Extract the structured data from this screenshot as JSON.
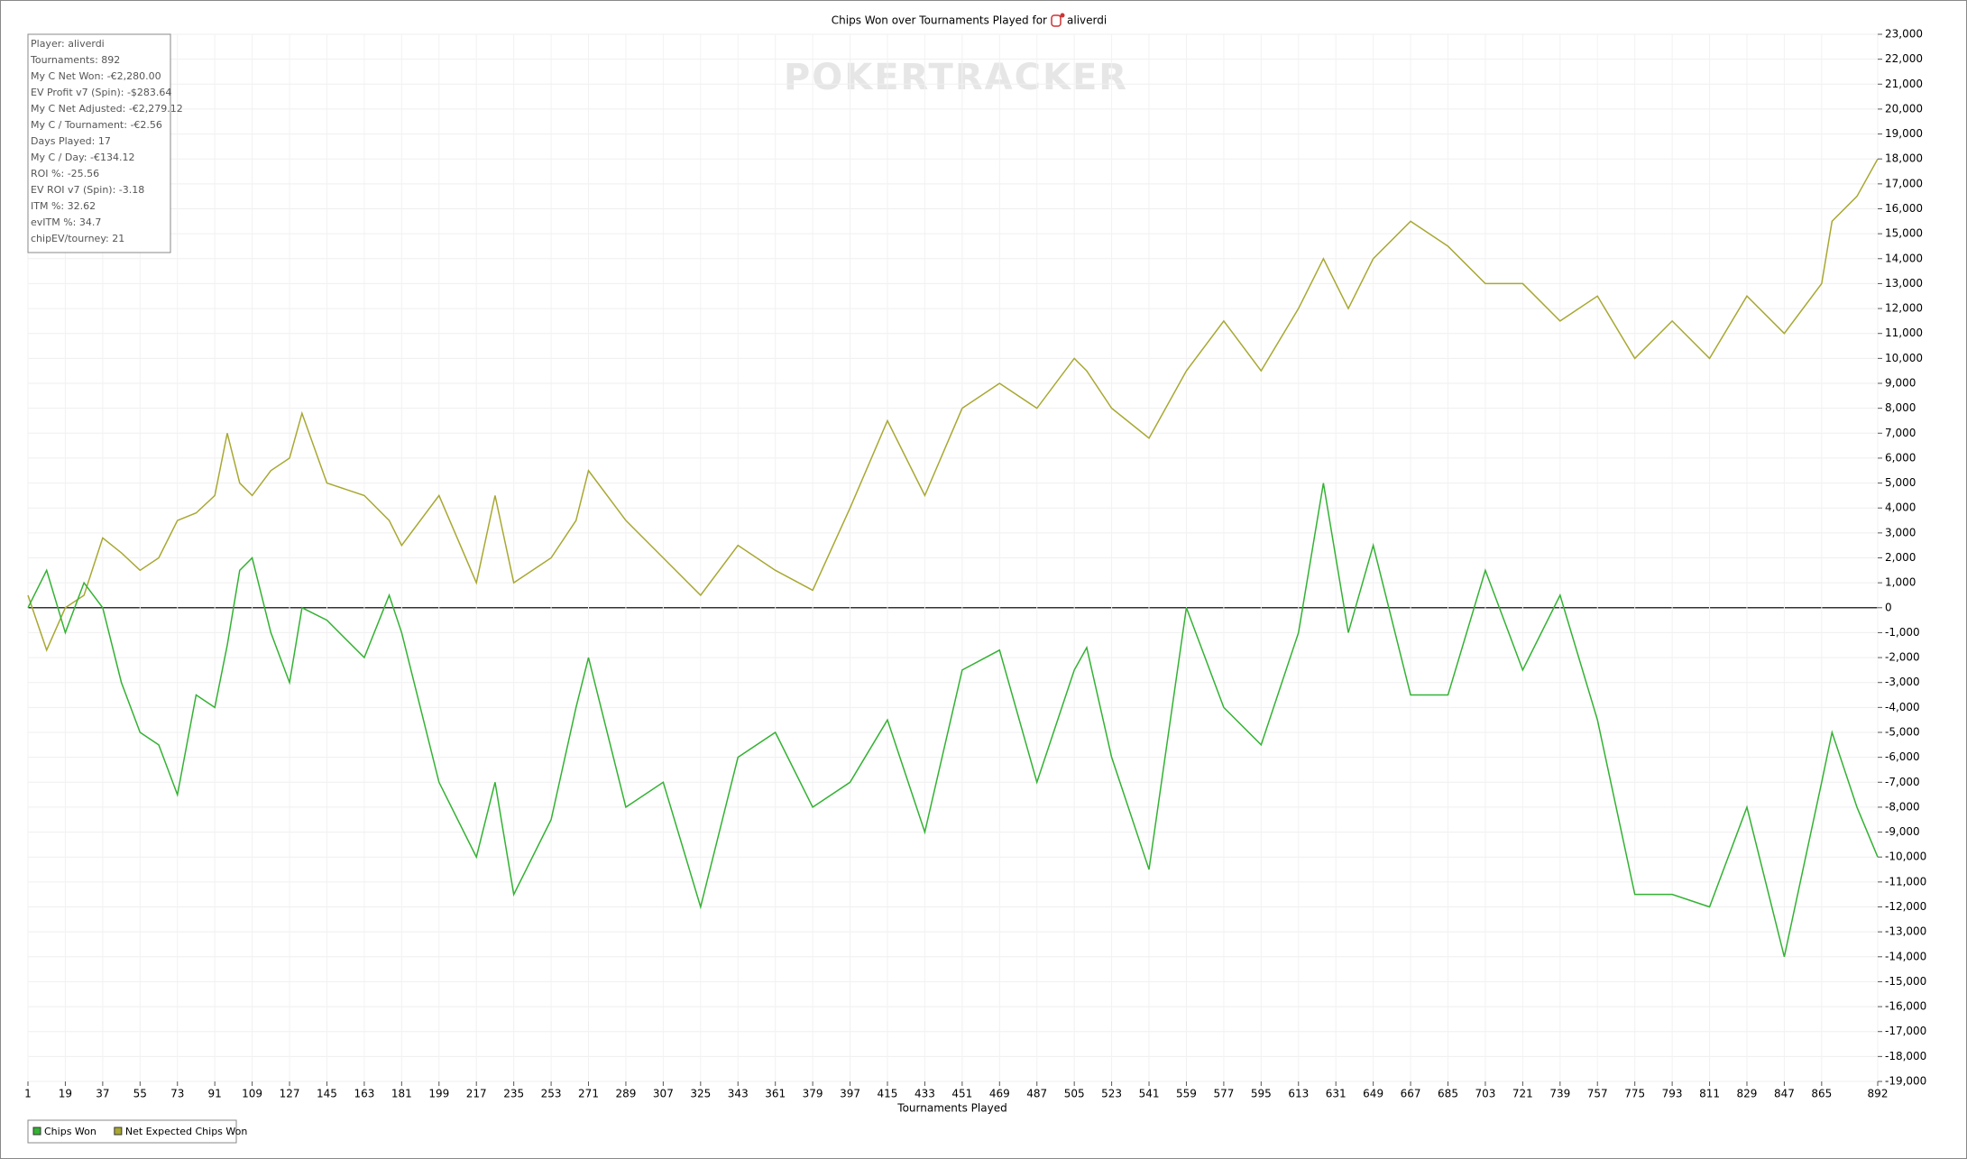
{
  "chart_data": {
    "type": "line",
    "title": "Chips Won over Tournaments Played for",
    "title_player": "aliverdi",
    "watermark": "POKERTRACKER",
    "x_label": "Tournaments Played",
    "stats": [
      "Player: aliverdi",
      "Tournaments: 892",
      "My C Net Won: -€2,280.00",
      "EV Profit v7 (Spin): -$283.64",
      "My C Net Adjusted: -€2,279.12",
      "My C / Tournament: -€2.56",
      "Days Played: 17",
      "My C / Day: -€134.12",
      "ROI %: -25.56",
      "EV ROI v7 (Spin): -3.18",
      "ITM %: 32.62",
      "evITM %: 34.7",
      "chipEV/tourney: 21"
    ],
    "x": [
      1,
      10,
      19,
      28,
      37,
      46,
      55,
      64,
      73,
      82,
      91,
      97,
      103,
      109,
      118,
      127,
      133,
      145,
      163,
      175,
      181,
      199,
      217,
      226,
      235,
      253,
      265,
      271,
      289,
      307,
      325,
      343,
      361,
      379,
      397,
      415,
      433,
      451,
      469,
      487,
      505,
      511,
      523,
      541,
      559,
      577,
      595,
      613,
      625,
      637,
      649,
      667,
      685,
      703,
      721,
      739,
      757,
      775,
      793,
      811,
      829,
      847,
      865,
      870,
      882,
      892
    ],
    "series": [
      {
        "name": "Chips Won",
        "color": "#33b233",
        "values": [
          0,
          1500,
          -1000,
          1000,
          0,
          -3000,
          -5000,
          -5500,
          -7500,
          -3500,
          -4000,
          -1500,
          1500,
          2000,
          -1000,
          -3000,
          0,
          -500,
          -2000,
          500,
          -1000,
          -7000,
          -10000,
          -7000,
          -11500,
          -8500,
          -4000,
          -2000,
          -8000,
          -7000,
          -12000,
          -6000,
          -5000,
          -8000,
          -7000,
          -4500,
          -9000,
          -2500,
          -1700,
          -7000,
          -2500,
          -1600,
          -6000,
          -10500,
          0,
          -4000,
          -5500,
          -1000,
          5000,
          -1000,
          2500,
          -3500,
          -3500,
          1500,
          -2500,
          500,
          -4500,
          -11500,
          -11500,
          -12000,
          -8000,
          -14000,
          -7000,
          -5000,
          -8000,
          -10000
        ]
      },
      {
        "name": "Net Expected Chips Won",
        "color": "#a8a832",
        "values": [
          500,
          -1700,
          0,
          500,
          2800,
          2200,
          1500,
          2000,
          3500,
          3800,
          4500,
          7000,
          5000,
          4500,
          5500,
          6000,
          7800,
          5000,
          4500,
          3500,
          2500,
          4500,
          1000,
          4500,
          1000,
          2000,
          3500,
          5500,
          3500,
          2000,
          500,
          2500,
          1500,
          700,
          4000,
          7500,
          4500,
          8000,
          9000,
          8000,
          10000,
          9500,
          8000,
          6800,
          9500,
          11500,
          9500,
          12000,
          14000,
          12000,
          14000,
          15500,
          14500,
          13000,
          13000,
          11500,
          12500,
          10000,
          11500,
          10000,
          12500,
          11000,
          13000,
          15500,
          16500,
          18000
        ]
      }
    ],
    "xlim": [
      1,
      892
    ],
    "xticks": [
      1,
      19,
      37,
      55,
      73,
      91,
      109,
      127,
      145,
      163,
      181,
      199,
      217,
      235,
      253,
      271,
      289,
      307,
      325,
      343,
      361,
      379,
      397,
      415,
      433,
      451,
      469,
      487,
      505,
      523,
      541,
      559,
      577,
      595,
      613,
      631,
      649,
      667,
      685,
      703,
      721,
      739,
      757,
      775,
      793,
      811,
      829,
      847,
      865,
      892
    ],
    "ylim": [
      -19000,
      23000
    ],
    "yticks": [
      {
        "value": -19000,
        "label": "-19,000"
      },
      {
        "value": -18000,
        "label": "-18,000"
      },
      {
        "value": -17000,
        "label": "-17,000"
      },
      {
        "value": -16000,
        "label": "-16,000"
      },
      {
        "value": -15000,
        "label": "-15,000"
      },
      {
        "value": -14000,
        "label": "-14,000"
      },
      {
        "value": -13000,
        "label": "-13,000"
      },
      {
        "value": -12000,
        "label": "-12,000"
      },
      {
        "value": -11000,
        "label": "-11,000"
      },
      {
        "value": -10000,
        "label": "-10,000"
      },
      {
        "value": -9000,
        "label": "-9,000"
      },
      {
        "value": -8000,
        "label": "-8,000"
      },
      {
        "value": -7000,
        "label": "-7,000"
      },
      {
        "value": -6000,
        "label": "-6,000"
      },
      {
        "value": -5000,
        "label": "-5,000"
      },
      {
        "value": -4000,
        "label": "-4,000"
      },
      {
        "value": -3000,
        "label": "-3,000"
      },
      {
        "value": -2000,
        "label": "-2,000"
      },
      {
        "value": -1000,
        "label": "-1,000"
      },
      0,
      {
        "value": 1000,
        "label": "1,000"
      },
      {
        "value": 2000,
        "label": "2,000"
      },
      {
        "value": 3000,
        "label": "3,000"
      },
      {
        "value": 4000,
        "label": "4,000"
      },
      {
        "value": 5000,
        "label": "5,000"
      },
      {
        "value": 6000,
        "label": "6,000"
      },
      {
        "value": 7000,
        "label": "7,000"
      },
      {
        "value": 8000,
        "label": "8,000"
      },
      {
        "value": 9000,
        "label": "9,000"
      },
      {
        "value": 10000,
        "label": "10,000"
      },
      {
        "value": 11000,
        "label": "11,000"
      },
      {
        "value": 12000,
        "label": "12,000"
      },
      {
        "value": 13000,
        "label": "13,000"
      },
      {
        "value": 14000,
        "label": "14,000"
      },
      {
        "value": 15000,
        "label": "15,000"
      },
      {
        "value": 16000,
        "label": "16,000"
      },
      {
        "value": 17000,
        "label": "17,000"
      },
      {
        "value": 18000,
        "label": "18,000"
      },
      {
        "value": 19000,
        "label": "19,000"
      },
      {
        "value": 20000,
        "label": "20,000"
      },
      {
        "value": 21000,
        "label": "21,000"
      },
      {
        "value": 22000,
        "label": "22,000"
      },
      {
        "value": 23000,
        "label": "23,000"
      }
    ],
    "grid": true
  }
}
